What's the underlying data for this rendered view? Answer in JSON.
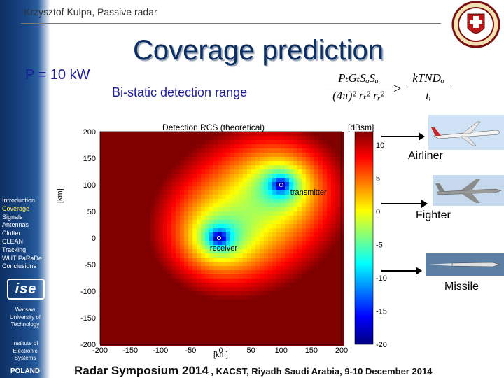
{
  "header": {
    "author": "Krzysztof  Kulpa, Passive radar",
    "title": "Coverage prediction",
    "power": "P = 10 kW",
    "subtitle": "Bi-static detection range"
  },
  "formula": {
    "lhs_numerator": "PₜGₜSₒSₐ",
    "lhs_denominator": "(4π)² rₜ² rᵣ²",
    "operator": ">",
    "rhs_numerator": "kTNDₒ",
    "rhs_denominator": "tᵢ"
  },
  "sidebar": {
    "nav": [
      {
        "label": "Introduction",
        "active": false
      },
      {
        "label": "Coverage",
        "active": true
      },
      {
        "label": "Signals",
        "active": false
      },
      {
        "label": "Antennas",
        "active": false
      },
      {
        "label": "Clutter",
        "active": false
      },
      {
        "label": "CLEAN",
        "active": false
      },
      {
        "label": "Tracking",
        "active": false
      },
      {
        "label": "WUT PaRaDe",
        "active": false
      },
      {
        "label": "Conclusions",
        "active": false
      }
    ],
    "logo_text": "ise",
    "university": [
      "Warsaw",
      "University of",
      "Technology"
    ],
    "institute": [
      "Institute of",
      "Electronic",
      "Systems"
    ],
    "country": "POLAND"
  },
  "chart_data": {
    "type": "heatmap",
    "title": "Detection RCS (theoretical)",
    "xlabel": "[km]",
    "ylabel": "[km]",
    "colorbar_label": "[dBsm]",
    "xlim": [
      -200,
      200
    ],
    "ylim": [
      -200,
      200
    ],
    "clim": [
      -20,
      12
    ],
    "x_ticks": [
      -200,
      -150,
      -100,
      -50,
      0,
      50,
      100,
      150,
      200
    ],
    "y_ticks": [
      200,
      150,
      100,
      50,
      0,
      -50,
      -100,
      -150,
      -200
    ],
    "colorbar_ticks": [
      10,
      5,
      0,
      -5,
      -10,
      -15,
      -20
    ],
    "points": [
      {
        "name": "transmitter",
        "x": 100,
        "y": 100
      },
      {
        "name": "receiver",
        "x": -3,
        "y": 0
      }
    ]
  },
  "targets": [
    {
      "label": "Airliner"
    },
    {
      "label": "Fighter"
    },
    {
      "label": "Missile"
    }
  ],
  "colors": {
    "sidebar": "#0c2f63",
    "title": "#0c2f63",
    "accent": "#1d1d9b",
    "active_nav": "#ffe94a"
  },
  "footer": {
    "main": "Radar Symposium 2014",
    "detail": " , KACST, Riyadh  Saudi Arabia,  9-10 December 2014"
  }
}
